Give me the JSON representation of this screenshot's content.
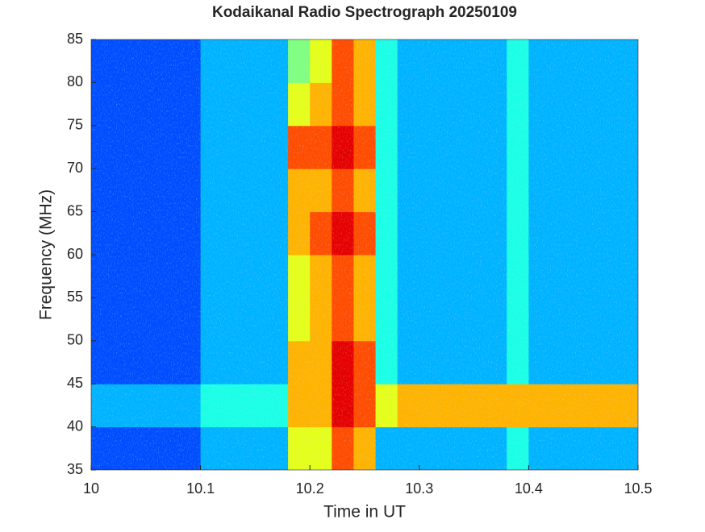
{
  "chart_data": {
    "type": "heatmap",
    "title": "Kodaikanal Radio Spectrograph  20250109",
    "xlabel": "Time in UT",
    "ylabel": "Frequency (MHz)",
    "x": [
      10.01,
      10.03,
      10.05,
      10.07,
      10.09,
      10.11,
      10.13,
      10.15,
      10.17,
      10.19,
      10.21,
      10.23,
      10.25,
      10.27,
      10.29,
      10.31,
      10.33,
      10.35,
      10.37,
      10.39,
      10.41,
      10.43,
      10.45,
      10.47,
      10.49
    ],
    "y": [
      37.5,
      42.5,
      47.5,
      52.5,
      57.5,
      62.5,
      67.5,
      72.5,
      77.5,
      82.5
    ],
    "z": [
      [
        1,
        1,
        1,
        1,
        1,
        2,
        2,
        2,
        2,
        5,
        5,
        7,
        6,
        2,
        2,
        2,
        2,
        2,
        2,
        3,
        2,
        2,
        2,
        2,
        2
      ],
      [
        2,
        2,
        2,
        2,
        2,
        3,
        3,
        3,
        3,
        6,
        6,
        8,
        7,
        5,
        6,
        6,
        6,
        6,
        6,
        6,
        6,
        6,
        6,
        6,
        6
      ],
      [
        1,
        1,
        1,
        1,
        1,
        2,
        2,
        2,
        2,
        6,
        6,
        8,
        7,
        3,
        2,
        2,
        2,
        2,
        2,
        3,
        2,
        2,
        2,
        2,
        2
      ],
      [
        1,
        1,
        1,
        1,
        1,
        2,
        2,
        2,
        2,
        5,
        6,
        7,
        6,
        3,
        2,
        2,
        2,
        2,
        2,
        3,
        2,
        2,
        2,
        2,
        2
      ],
      [
        1,
        1,
        1,
        1,
        1,
        2,
        2,
        2,
        2,
        5,
        6,
        7,
        6,
        3,
        2,
        2,
        2,
        2,
        2,
        3,
        2,
        2,
        2,
        2,
        2
      ],
      [
        1,
        1,
        1,
        1,
        1,
        2,
        2,
        2,
        2,
        6,
        7,
        8,
        7,
        3,
        2,
        2,
        2,
        2,
        2,
        3,
        2,
        2,
        2,
        2,
        2
      ],
      [
        1,
        1,
        1,
        1,
        1,
        2,
        2,
        2,
        2,
        6,
        6,
        7,
        6,
        3,
        2,
        2,
        2,
        2,
        2,
        3,
        2,
        2,
        2,
        2,
        2
      ],
      [
        1,
        1,
        1,
        1,
        1,
        2,
        2,
        2,
        2,
        7,
        7,
        8,
        7,
        3,
        2,
        2,
        2,
        2,
        2,
        3,
        2,
        2,
        2,
        2,
        2
      ],
      [
        1,
        1,
        1,
        1,
        1,
        2,
        2,
        2,
        2,
        5,
        6,
        7,
        6,
        3,
        2,
        2,
        2,
        2,
        2,
        3,
        2,
        2,
        2,
        2,
        2
      ],
      [
        1,
        1,
        1,
        1,
        1,
        2,
        2,
        2,
        2,
        4,
        5,
        7,
        6,
        3,
        2,
        2,
        2,
        2,
        2,
        3,
        2,
        2,
        2,
        2,
        2
      ]
    ],
    "clim": [
      0,
      9
    ],
    "colormap": "jet",
    "xlim": [
      10,
      10.5
    ],
    "xticks": [
      10,
      10.1,
      10.2,
      10.3,
      10.4,
      10.5
    ],
    "ylim": [
      35,
      85
    ],
    "yticks": [
      35,
      40,
      45,
      50,
      55,
      60,
      65,
      70,
      75,
      80,
      85
    ]
  }
}
